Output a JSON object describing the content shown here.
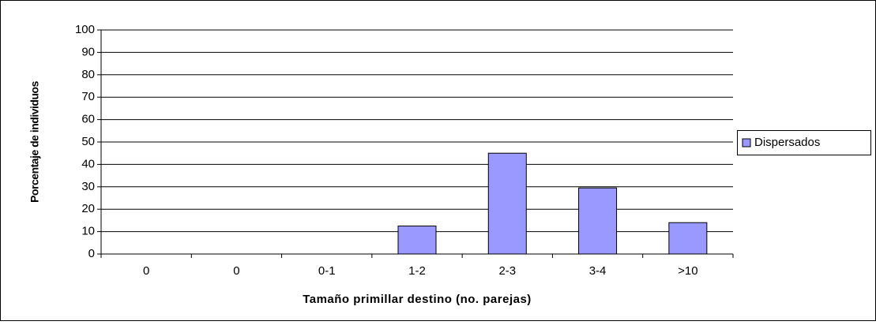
{
  "chart_data": {
    "type": "bar",
    "categories": [
      "0",
      "0",
      "0-1",
      "1-2",
      "2-3",
      "3-4",
      ">10"
    ],
    "series": [
      {
        "name": "Dispersados",
        "color": "#9999ff",
        "values": [
          0,
          0,
          0,
          12.5,
          45,
          29.5,
          14
        ]
      }
    ],
    "y_label": "Porcentaje de individuos",
    "x_label": "Tamaño primillar destino (no. parejas)",
    "ylim": [
      0,
      100
    ],
    "yticks": [
      0,
      10,
      20,
      30,
      40,
      50,
      60,
      70,
      80,
      90,
      100
    ],
    "grid": true,
    "legend": "right"
  }
}
